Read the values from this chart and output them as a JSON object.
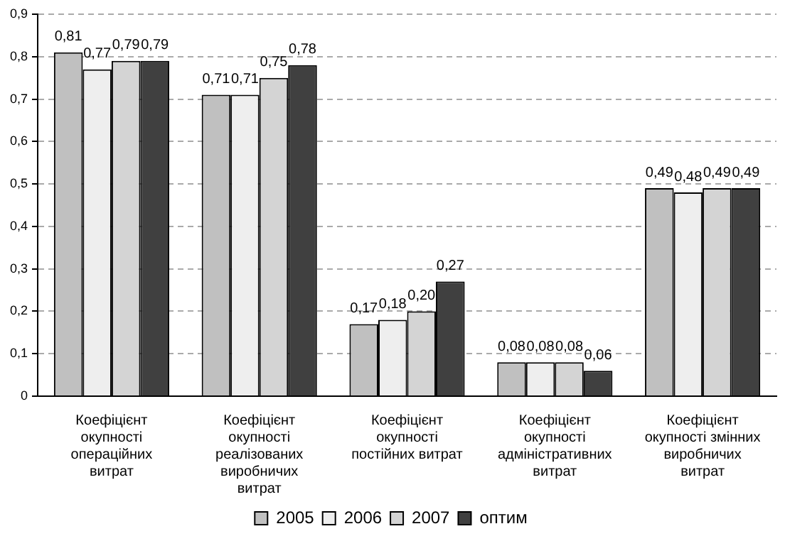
{
  "chart_data": {
    "type": "bar",
    "categories": [
      "Коефіцієнт окупності операційних витрат",
      "Коефіцієнт окупності реалізованих виробничих витрат",
      "Коефіцієнт окупності постійних витрат",
      "Коефіцієнт окупності адміністративних витрат",
      "Коефіцієнт окупності змінних виробничих витрат"
    ],
    "series": [
      {
        "name": "2005",
        "color": "#c0c0c0",
        "values": [
          0.81,
          0.71,
          0.17,
          0.08,
          0.49
        ],
        "value_labels": [
          "0,81",
          "0,71",
          "0,17",
          "0,08",
          "0,49"
        ]
      },
      {
        "name": "2006",
        "color": "#eeeeee",
        "values": [
          0.77,
          0.71,
          0.18,
          0.08,
          0.48
        ],
        "value_labels": [
          "0,77",
          "0,71",
          "0,18",
          "0,08",
          "0,48"
        ]
      },
      {
        "name": "2007",
        "color": "#d4d4d4",
        "values": [
          0.79,
          0.75,
          0.2,
          0.08,
          0.49
        ],
        "value_labels": [
          "0,79",
          "0,75",
          "0,20",
          "0,08",
          "0,49"
        ]
      },
      {
        "name": "оптим",
        "color": "#404040",
        "values": [
          0.79,
          0.78,
          0.27,
          0.06,
          0.49
        ],
        "value_labels": [
          "0,79",
          "0,78",
          "0,27",
          "0,06",
          "0,49"
        ]
      }
    ],
    "ylim": [
      0,
      0.9
    ],
    "yticks": [
      0,
      {
        "value": 0.1,
        "label": "0,1"
      },
      {
        "value": 0.2,
        "label": "0,2"
      },
      {
        "value": 0.3,
        "label": "0,3"
      },
      {
        "value": 0.4,
        "label": "0,4"
      },
      {
        "value": 0.5,
        "label": "0,5"
      },
      {
        "value": 0.6,
        "label": "0,6"
      },
      {
        "value": 0.7,
        "label": "0,7"
      },
      {
        "value": 0.8,
        "label": "0,8"
      },
      {
        "value": 0.9,
        "label": "0,9"
      }
    ],
    "grid": "y",
    "legend": "bottom",
    "line_style": "dashed"
  }
}
